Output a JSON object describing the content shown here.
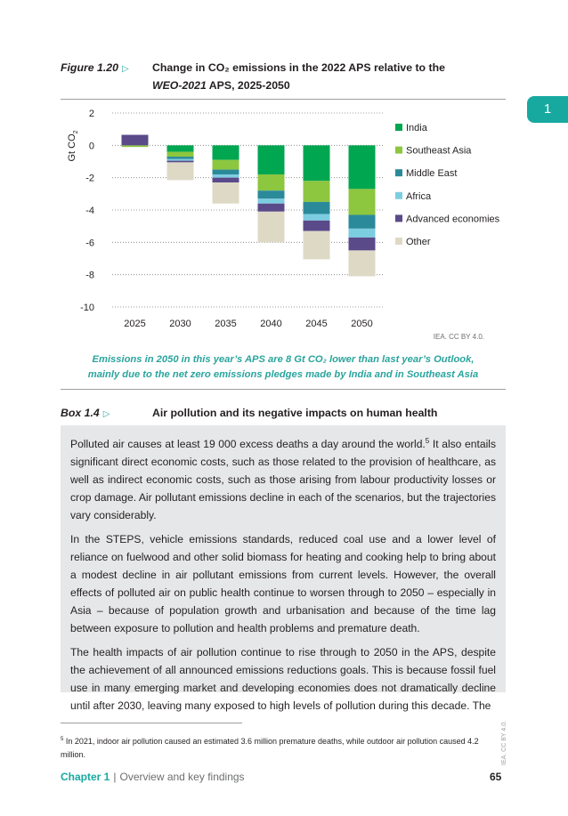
{
  "figure": {
    "label": "Figure 1.20",
    "arrow": "▷",
    "title_line1": "Change in CO₂ emissions in the 2022 APS relative to the",
    "title_line2_italic": "WEO-2021",
    "title_line2_rest": " APS, 2025-2050"
  },
  "chapter_tab": "1",
  "chart_data": {
    "type": "bar",
    "stacked": true,
    "ylabel": "Gt CO2",
    "ylim": [
      -10,
      2
    ],
    "yticks": [
      2,
      0,
      -2,
      -4,
      -6,
      -8,
      -10
    ],
    "categories": [
      "2025",
      "2030",
      "2035",
      "2040",
      "2045",
      "2050"
    ],
    "legend_position": "right",
    "series": [
      {
        "name": "India",
        "color": "#00a650",
        "values": [
          0,
          -0.4,
          -0.9,
          -1.8,
          -2.2,
          -2.7
        ]
      },
      {
        "name": "Southeast Asia",
        "color": "#8dc63f",
        "values": [
          -0.1,
          -0.3,
          -0.6,
          -1.0,
          -1.3,
          -1.6
        ]
      },
      {
        "name": "Middle East",
        "color": "#2b8a99",
        "values": [
          0,
          -0.15,
          -0.3,
          -0.5,
          -0.75,
          -0.85
        ]
      },
      {
        "name": "Africa",
        "color": "#7dcde0",
        "values": [
          0,
          -0.1,
          -0.2,
          -0.3,
          -0.4,
          -0.55
        ]
      },
      {
        "name": "Advanced economies",
        "color": "#5a4a8a",
        "values": [
          0.65,
          -0.1,
          -0.3,
          -0.5,
          -0.65,
          -0.8
        ]
      },
      {
        "name": "Other",
        "color": "#ded9c5",
        "values": [
          0,
          -1.1,
          -1.3,
          -1.9,
          -1.75,
          -1.6
        ]
      }
    ]
  },
  "credit": "IEA. CC BY 4.0.",
  "caption": {
    "line1": "Emissions in 2050 in this year’s APS are 8 Gt CO₂ lower than last year’s Outlook,",
    "line2": "mainly due to the net zero emissions pledges made by India and in Southeast Asia"
  },
  "box": {
    "label": "Box 1.4",
    "arrow": "▷",
    "title": "Air pollution and its negative impacts on human health",
    "para1_a": "Polluted air causes at least 19 000 excess deaths a day around the world.",
    "para1_sup": "5",
    "para1_b": " It also entails significant direct economic costs, such as those related to the provision of healthcare, as well as indirect economic costs, such as those arising from labour productivity losses or crop damage. Air pollutant emissions decline in each of the scenarios, but the trajectories vary considerably.",
    "para2": "In the STEPS, vehicle emissions standards, reduced coal use and a lower level of reliance on fuelwood and other solid biomass for heating and cooking help to bring about a modest decline in air pollutant emissions from current levels. However, the overall effects of polluted air on public health continue to worsen through to 2050 – especially in Asia – because of population growth and urbanisation and because of the time lag between exposure to pollution and health problems and premature death.",
    "para3": "The health impacts of air pollution continue to rise through to 2050 in the APS, despite the achievement of all announced emissions reductions goals. This is because fossil fuel use in many emerging market and developing economies does not dramatically decline until after 2030, leaving many exposed to high levels of pollution during this decade. The"
  },
  "footnote": {
    "number": "5",
    "text": " In 2021, indoor air pollution caused an estimated 3.6 million premature deaths, while outdoor air pollution caused 4.2 million."
  },
  "footer": {
    "chapter": "Chapter 1",
    "separator": "|",
    "title": "Overview and key findings",
    "page": "65",
    "vertical_license": "IEA. CC BY 4.0."
  }
}
